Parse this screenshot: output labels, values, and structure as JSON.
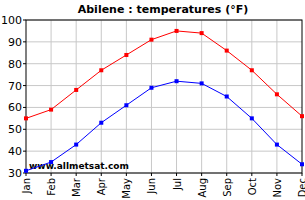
{
  "chart_data": {
    "type": "line",
    "title": "Abilene : temperatures (°F)",
    "categories": [
      "Jan",
      "Feb",
      "Mar",
      "Apr",
      "May",
      "Jun",
      "Jul",
      "Aug",
      "Sep",
      "Oct",
      "Nov",
      "Dec"
    ],
    "series": [
      {
        "color": "#ff0000",
        "marker": "square",
        "line_style": "solid",
        "values": [
          55,
          59,
          68,
          77,
          84,
          91,
          95,
          94,
          86,
          77,
          66,
          56
        ]
      },
      {
        "color": "#0000ff",
        "marker": "square",
        "line_style": "solid",
        "values": [
          31,
          35,
          43,
          53,
          61,
          69,
          72,
          71,
          65,
          55,
          43,
          34
        ]
      }
    ],
    "ylim": [
      30,
      100
    ],
    "yticks": [
      30,
      40,
      50,
      60,
      70,
      80,
      90,
      100
    ],
    "grid": true,
    "annotations": [
      "www.allmetsat.com"
    ]
  }
}
